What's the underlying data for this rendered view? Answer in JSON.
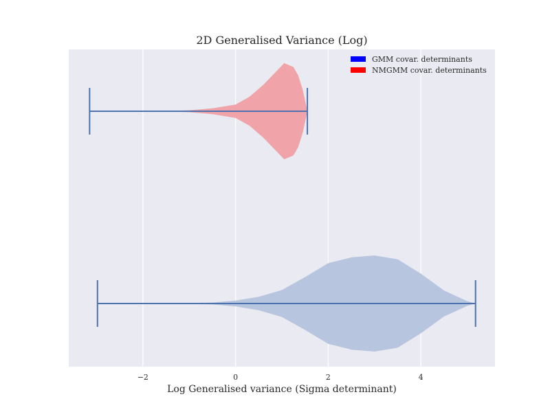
{
  "chart_data": {
    "type": "violin",
    "orientation": "horizontal",
    "title": "2D Generalised Variance (Log)",
    "xlabel": "Log Generalised variance (Sigma determinant)",
    "ylabel": "",
    "xlim": [
      -3.6,
      5.6
    ],
    "xticks": [
      -2,
      0,
      2,
      4
    ],
    "xtick_labels": [
      "−2",
      "0",
      "2",
      "4"
    ],
    "grid": "x",
    "legend_position": "top-right",
    "legend": [
      {
        "label": "GMM covar. determinants",
        "color": "#0000ff"
      },
      {
        "label": "NMGMM covar. determinants",
        "color": "#ff0000"
      }
    ],
    "series": [
      {
        "name": "GMM covar. determinants",
        "fill_color": "#b8c5df",
        "line_color": "#4c72b0",
        "min": -2.98,
        "max": 5.18,
        "density": [
          [
            -2.98,
            0.0
          ],
          [
            -1.0,
            0.01
          ],
          [
            -0.5,
            0.02
          ],
          [
            0.0,
            0.06
          ],
          [
            0.5,
            0.14
          ],
          [
            1.0,
            0.28
          ],
          [
            1.5,
            0.55
          ],
          [
            2.0,
            0.84
          ],
          [
            2.5,
            0.96
          ],
          [
            3.0,
            1.0
          ],
          [
            3.5,
            0.92
          ],
          [
            4.0,
            0.62
          ],
          [
            4.5,
            0.27
          ],
          [
            5.0,
            0.05
          ],
          [
            5.18,
            0.0
          ]
        ]
      },
      {
        "name": "NMGMM covar. determinants",
        "fill_color": "#f0a3a8",
        "line_color": "#4c72b0",
        "min": -3.15,
        "max": 1.55,
        "density": [
          [
            -3.15,
            0.0
          ],
          [
            -1.5,
            0.005
          ],
          [
            -1.0,
            0.02
          ],
          [
            -0.5,
            0.06
          ],
          [
            0.0,
            0.14
          ],
          [
            0.3,
            0.3
          ],
          [
            0.6,
            0.55
          ],
          [
            0.85,
            0.8
          ],
          [
            1.05,
            1.0
          ],
          [
            1.25,
            0.92
          ],
          [
            1.35,
            0.75
          ],
          [
            1.45,
            0.45
          ],
          [
            1.55,
            0.0
          ]
        ]
      }
    ]
  }
}
